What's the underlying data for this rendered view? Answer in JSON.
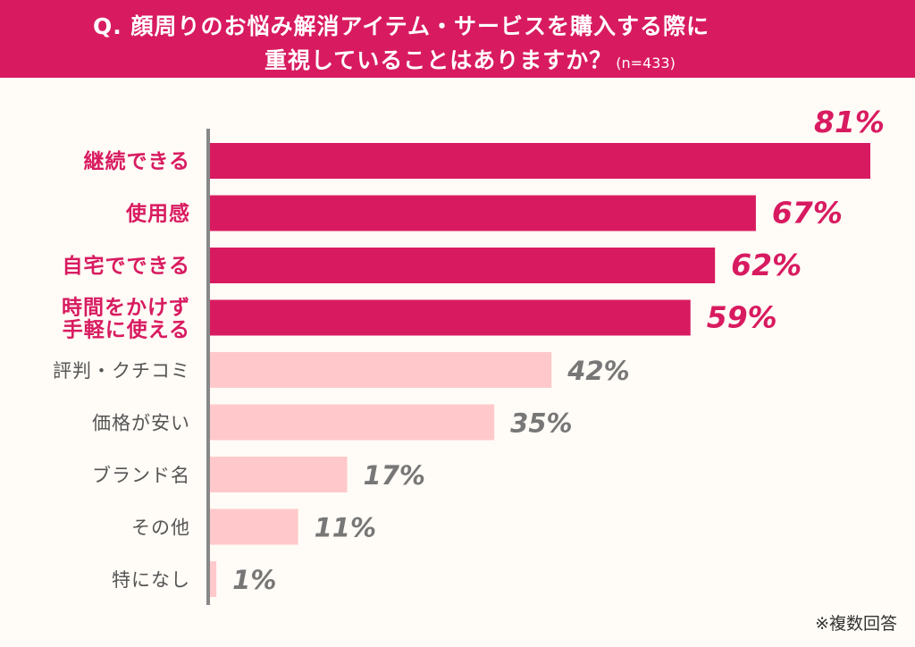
{
  "question": {
    "line1": "Q. 顔周りのお悩み解消アイテム・サービスを購入する際に",
    "line2": "重視していることはありますか？",
    "sample": "(n=433)"
  },
  "note": "※複数回答",
  "colors": {
    "header": "#d81b60",
    "highlight_bar": "#d81b60",
    "highlight_text": "#d81b60",
    "muted_bar": "#ffc9cb",
    "muted_text": "#555555",
    "value_muted": "#777777",
    "axis": "#888888"
  },
  "chart_data": {
    "type": "bar",
    "orientation": "horizontal",
    "categories": [
      [
        "継続できる"
      ],
      [
        "使用感"
      ],
      [
        "自宅でできる"
      ],
      [
        "時間をかけず",
        "手軽に使える"
      ],
      [
        "評判・クチコミ"
      ],
      [
        "価格が安い"
      ],
      [
        "ブランド名"
      ],
      [
        "その他"
      ],
      [
        "特になし"
      ]
    ],
    "values": [
      81,
      67,
      62,
      59,
      42,
      35,
      17,
      11,
      1
    ],
    "value_labels": [
      "81%",
      "67%",
      "62%",
      "59%",
      "42%",
      "35%",
      "17%",
      "11%",
      "1%"
    ],
    "highlighted": [
      true,
      true,
      true,
      true,
      false,
      false,
      false,
      false,
      false
    ],
    "unit": "%",
    "xlim": [
      0,
      81
    ]
  }
}
